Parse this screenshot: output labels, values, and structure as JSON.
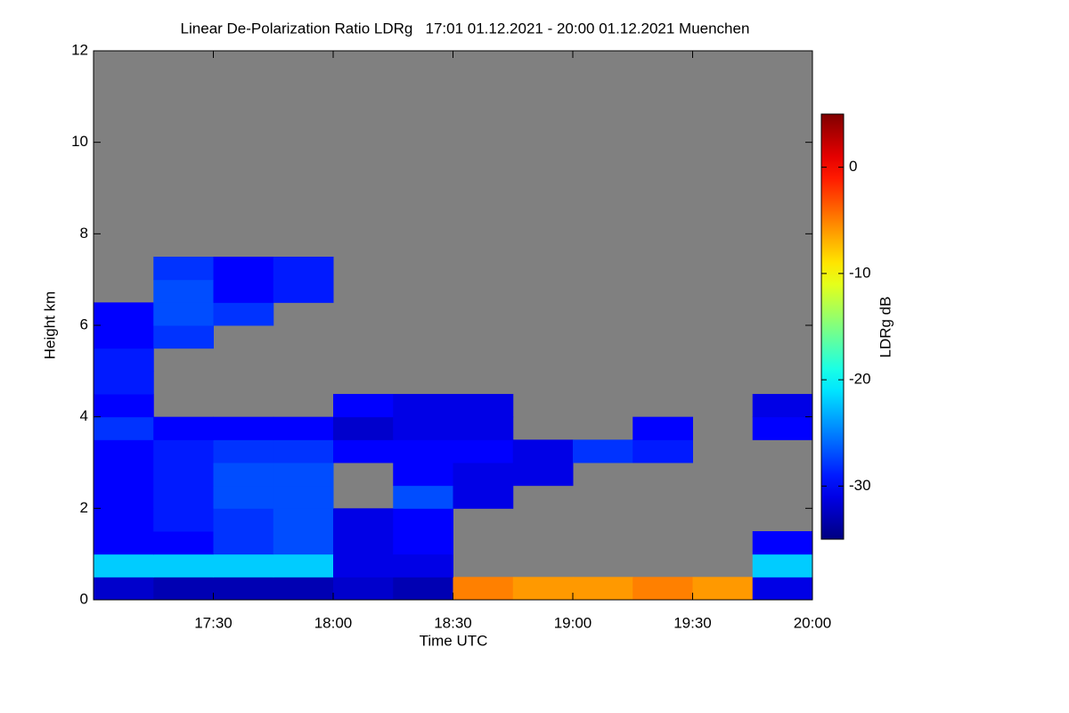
{
  "chart_data": {
    "type": "heatmap",
    "title": "Linear De-Polarization Ratio LDRg   17:01 01.12.2021 - 20:00 01.12.2021 Muenchen",
    "x_label": "Time UTC",
    "y_label": "Height km",
    "colorbar_label": "LDRg dB",
    "xbins": [
      17.0,
      17.25,
      17.5,
      17.75,
      18.0,
      18.25,
      18.5,
      18.75,
      19.0,
      19.25,
      19.5,
      19.75,
      20.0
    ],
    "ybins": [
      0,
      0.5,
      1,
      1.5,
      2,
      2.5,
      3,
      3.5,
      4,
      4.5,
      5,
      5.5,
      6,
      6.5,
      7,
      7.5,
      8
    ],
    "values": [
      [
        -32,
        -33,
        -33,
        -33,
        -32,
        -33,
        -5,
        -6,
        -6,
        -5,
        -6,
        -31
      ],
      [
        -22,
        -22,
        -22,
        -22,
        -31,
        -31,
        null,
        null,
        null,
        null,
        null,
        -22
      ],
      [
        -30,
        -30,
        -28,
        -27,
        -31,
        -30,
        null,
        null,
        null,
        null,
        null,
        -30
      ],
      [
        -30,
        -29,
        -28,
        -27,
        -31,
        -30,
        null,
        null,
        null,
        null,
        null,
        null
      ],
      [
        -30,
        -29,
        -27,
        -27,
        null,
        -27,
        -31,
        null,
        null,
        null,
        null,
        null
      ],
      [
        -30,
        -29,
        -27,
        -27,
        null,
        -30,
        -31,
        -31,
        null,
        null,
        null,
        null
      ],
      [
        -30,
        -29,
        -28,
        -28,
        -30,
        -30,
        -30,
        -31,
        -28,
        -29,
        null,
        null
      ],
      [
        -28,
        -30,
        -30,
        -30,
        -32,
        -31,
        -31,
        null,
        null,
        -30,
        null,
        -30
      ],
      [
        -30,
        null,
        null,
        null,
        -30,
        -31,
        -31,
        null,
        null,
        null,
        null,
        -31
      ],
      [
        -29,
        null,
        null,
        null,
        null,
        null,
        null,
        null,
        null,
        null,
        null,
        null
      ],
      [
        -29,
        null,
        null,
        null,
        null,
        null,
        null,
        null,
        null,
        null,
        null,
        null
      ],
      [
        -30,
        -28,
        null,
        null,
        null,
        null,
        null,
        null,
        null,
        null,
        null,
        null
      ],
      [
        -30,
        -27,
        -28,
        null,
        null,
        null,
        null,
        null,
        null,
        null,
        null,
        null
      ],
      [
        null,
        -27,
        -30,
        -29,
        null,
        null,
        null,
        null,
        null,
        null,
        null,
        null
      ],
      [
        null,
        -28,
        -30,
        -29,
        null,
        null,
        null,
        null,
        null,
        null,
        null,
        null
      ],
      [
        null,
        null,
        null,
        null,
        null,
        null,
        null,
        null,
        null,
        null,
        null,
        null
      ]
    ],
    "missing_color": "#808080",
    "colormap": "jet",
    "xlim": [
      17.0,
      20.0
    ],
    "ylim": [
      0,
      12
    ],
    "clim": [
      -35,
      5
    ],
    "xticks": [
      {
        "value": 17.5,
        "label": "17:30"
      },
      {
        "value": 18.0,
        "label": "18:00"
      },
      {
        "value": 18.5,
        "label": "18:30"
      },
      {
        "value": 19.0,
        "label": "19:00"
      },
      {
        "value": 19.5,
        "label": "19:30"
      },
      {
        "value": 20.0,
        "label": "20:00"
      }
    ],
    "yticks": [
      0,
      2,
      4,
      6,
      8,
      10,
      12
    ],
    "cticks": [
      0,
      -10,
      -20,
      -30
    ]
  }
}
